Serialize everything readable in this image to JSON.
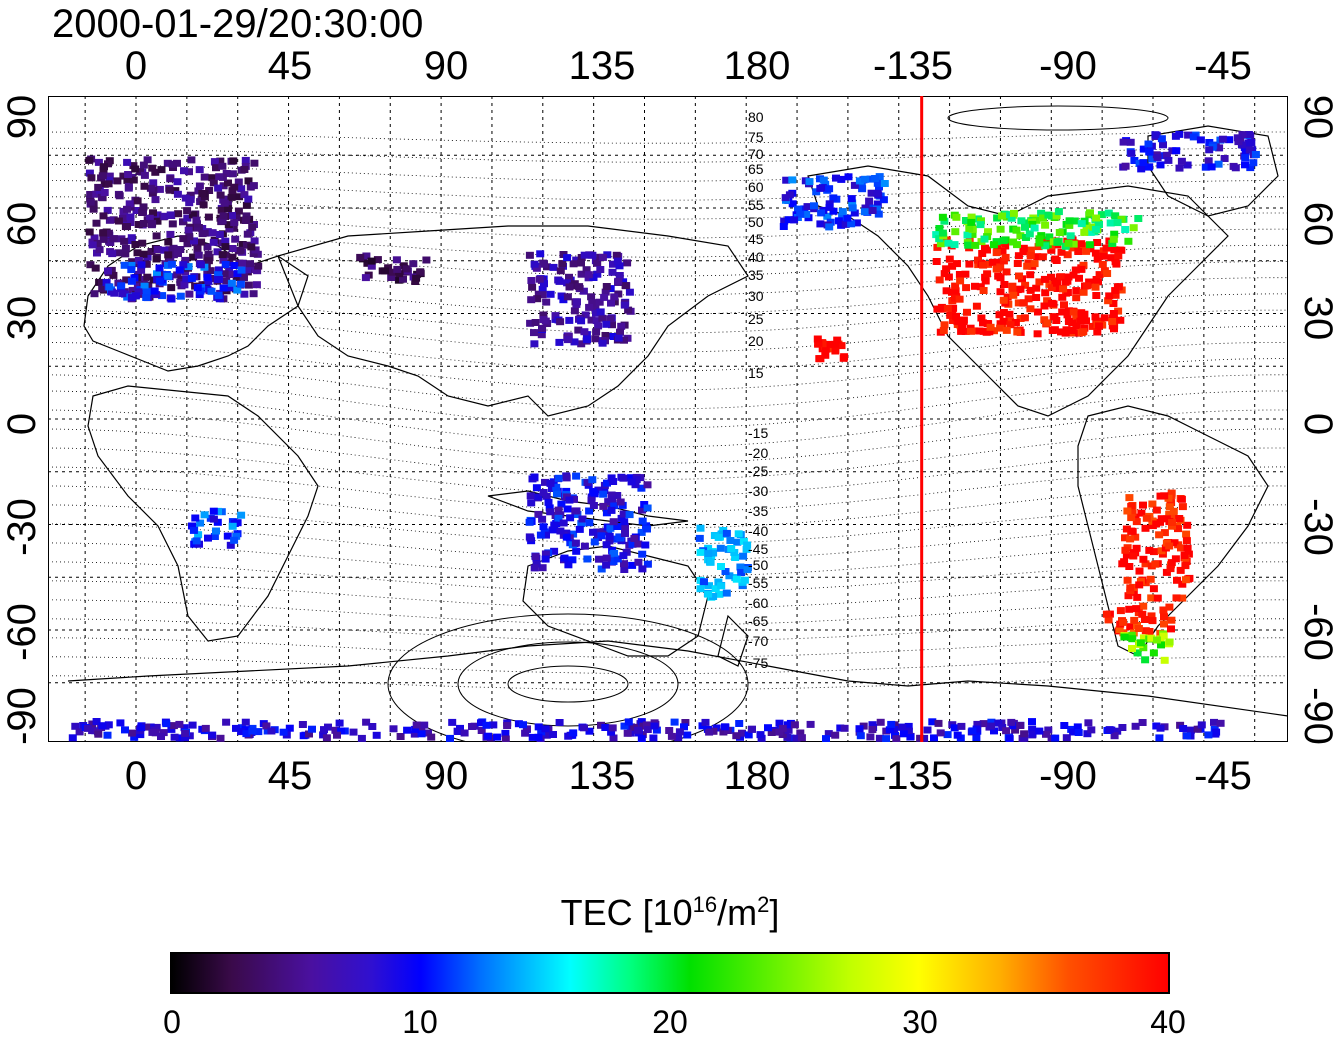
{
  "title": "2000-01-29/20:30:00",
  "lon_labels_top": [
    "0",
    "45",
    "90",
    "135",
    "180",
    "-135",
    "-90",
    "-45"
  ],
  "lon_labels_bottom": [
    "0",
    "45",
    "90",
    "135",
    "180",
    "-135",
    "-90",
    "-45"
  ],
  "lat_labels_left": [
    "90",
    "60",
    "30",
    "0",
    "-30",
    "-60",
    "-90"
  ],
  "lat_labels_right": [
    "90",
    "60",
    "30",
    "0",
    "-30",
    "-60",
    "-90"
  ],
  "contour_labels": [
    "80",
    "75",
    "70",
    "65",
    "60",
    "55",
    "50",
    "45",
    "40",
    "35",
    "30",
    "25",
    "20",
    "15",
    "-15",
    "-20",
    "-25",
    "-30",
    "-35",
    "-40",
    "-45",
    "-50",
    "-55",
    "-60",
    "-65",
    "-70",
    "-75"
  ],
  "terminator_longitude": -128,
  "terminator_color": "#ff0000",
  "colorbar": {
    "title_prefix": "TEC  [10",
    "title_exp1": "16",
    "title_mid": "/m",
    "title_exp2": "2",
    "title_suffix": "]",
    "min": 0,
    "max": 40,
    "labels": [
      "0",
      "10",
      "20",
      "30",
      "40"
    ],
    "stops": [
      "#000000",
      "#3a0a4a",
      "#4a10a0",
      "#0000ff",
      "#00c0ff",
      "#00ffff",
      "#00e000",
      "#c0ff00",
      "#ffff00",
      "#ff5000",
      "#ff0000"
    ]
  },
  "tec_regions": [
    {
      "name": "europe",
      "lon": [
        -15,
        35
      ],
      "lat": [
        35,
        75
      ],
      "tec": 6
    },
    {
      "name": "europe-south",
      "lon": [
        -10,
        30
      ],
      "lat": [
        35,
        45
      ],
      "tec": 12
    },
    {
      "name": "east-asia",
      "lon": [
        115,
        145
      ],
      "lat": [
        22,
        48
      ],
      "tec": 8
    },
    {
      "name": "central-asia",
      "lon": [
        65,
        85
      ],
      "lat": [
        40,
        48
      ],
      "tec": 5
    },
    {
      "name": "north-america",
      "lon": [
        -125,
        -70
      ],
      "lat": [
        25,
        52
      ],
      "tec": 40
    },
    {
      "name": "canada",
      "lon": [
        -125,
        -65
      ],
      "lat": [
        50,
        60
      ],
      "tec": 24
    },
    {
      "name": "south-america",
      "lon": [
        -70,
        -50
      ],
      "lat": [
        -50,
        -20
      ],
      "tec": 39
    },
    {
      "name": "patagonia",
      "lon": [
        -75,
        -55
      ],
      "lat": [
        -60,
        -52
      ],
      "tec": 38
    },
    {
      "name": "antarctic-peninsula",
      "lon": [
        -70,
        -55
      ],
      "lat": [
        -68,
        -60
      ],
      "tec": 26
    },
    {
      "name": "australia",
      "lon": [
        115,
        150
      ],
      "lat": [
        -42,
        -15
      ],
      "tec": 11
    },
    {
      "name": "new-zealand",
      "lon": [
        165,
        180
      ],
      "lat": [
        -50,
        -30
      ],
      "tec": 16
    },
    {
      "name": "alaska",
      "lon": [
        -170,
        -140
      ],
      "lat": [
        55,
        70
      ],
      "tec": 12
    },
    {
      "name": "hawaii",
      "lon": [
        -160,
        -152
      ],
      "lat": [
        18,
        24
      ],
      "tec": 40
    },
    {
      "name": "antarctica",
      "lon": [
        -20,
        180
      ],
      "lat": [
        -90,
        -85
      ],
      "tec": 10
    },
    {
      "name": "antarctica-west",
      "lon": [
        -180,
        -40
      ],
      "lat": [
        -90,
        -85
      ],
      "tec": 10
    },
    {
      "name": "africa-south",
      "lon": [
        15,
        30
      ],
      "lat": [
        -35,
        -25
      ],
      "tec": 13
    },
    {
      "name": "greenland",
      "lon": [
        -70,
        -30
      ],
      "lat": [
        72,
        82
      ],
      "tec": 11
    }
  ]
}
